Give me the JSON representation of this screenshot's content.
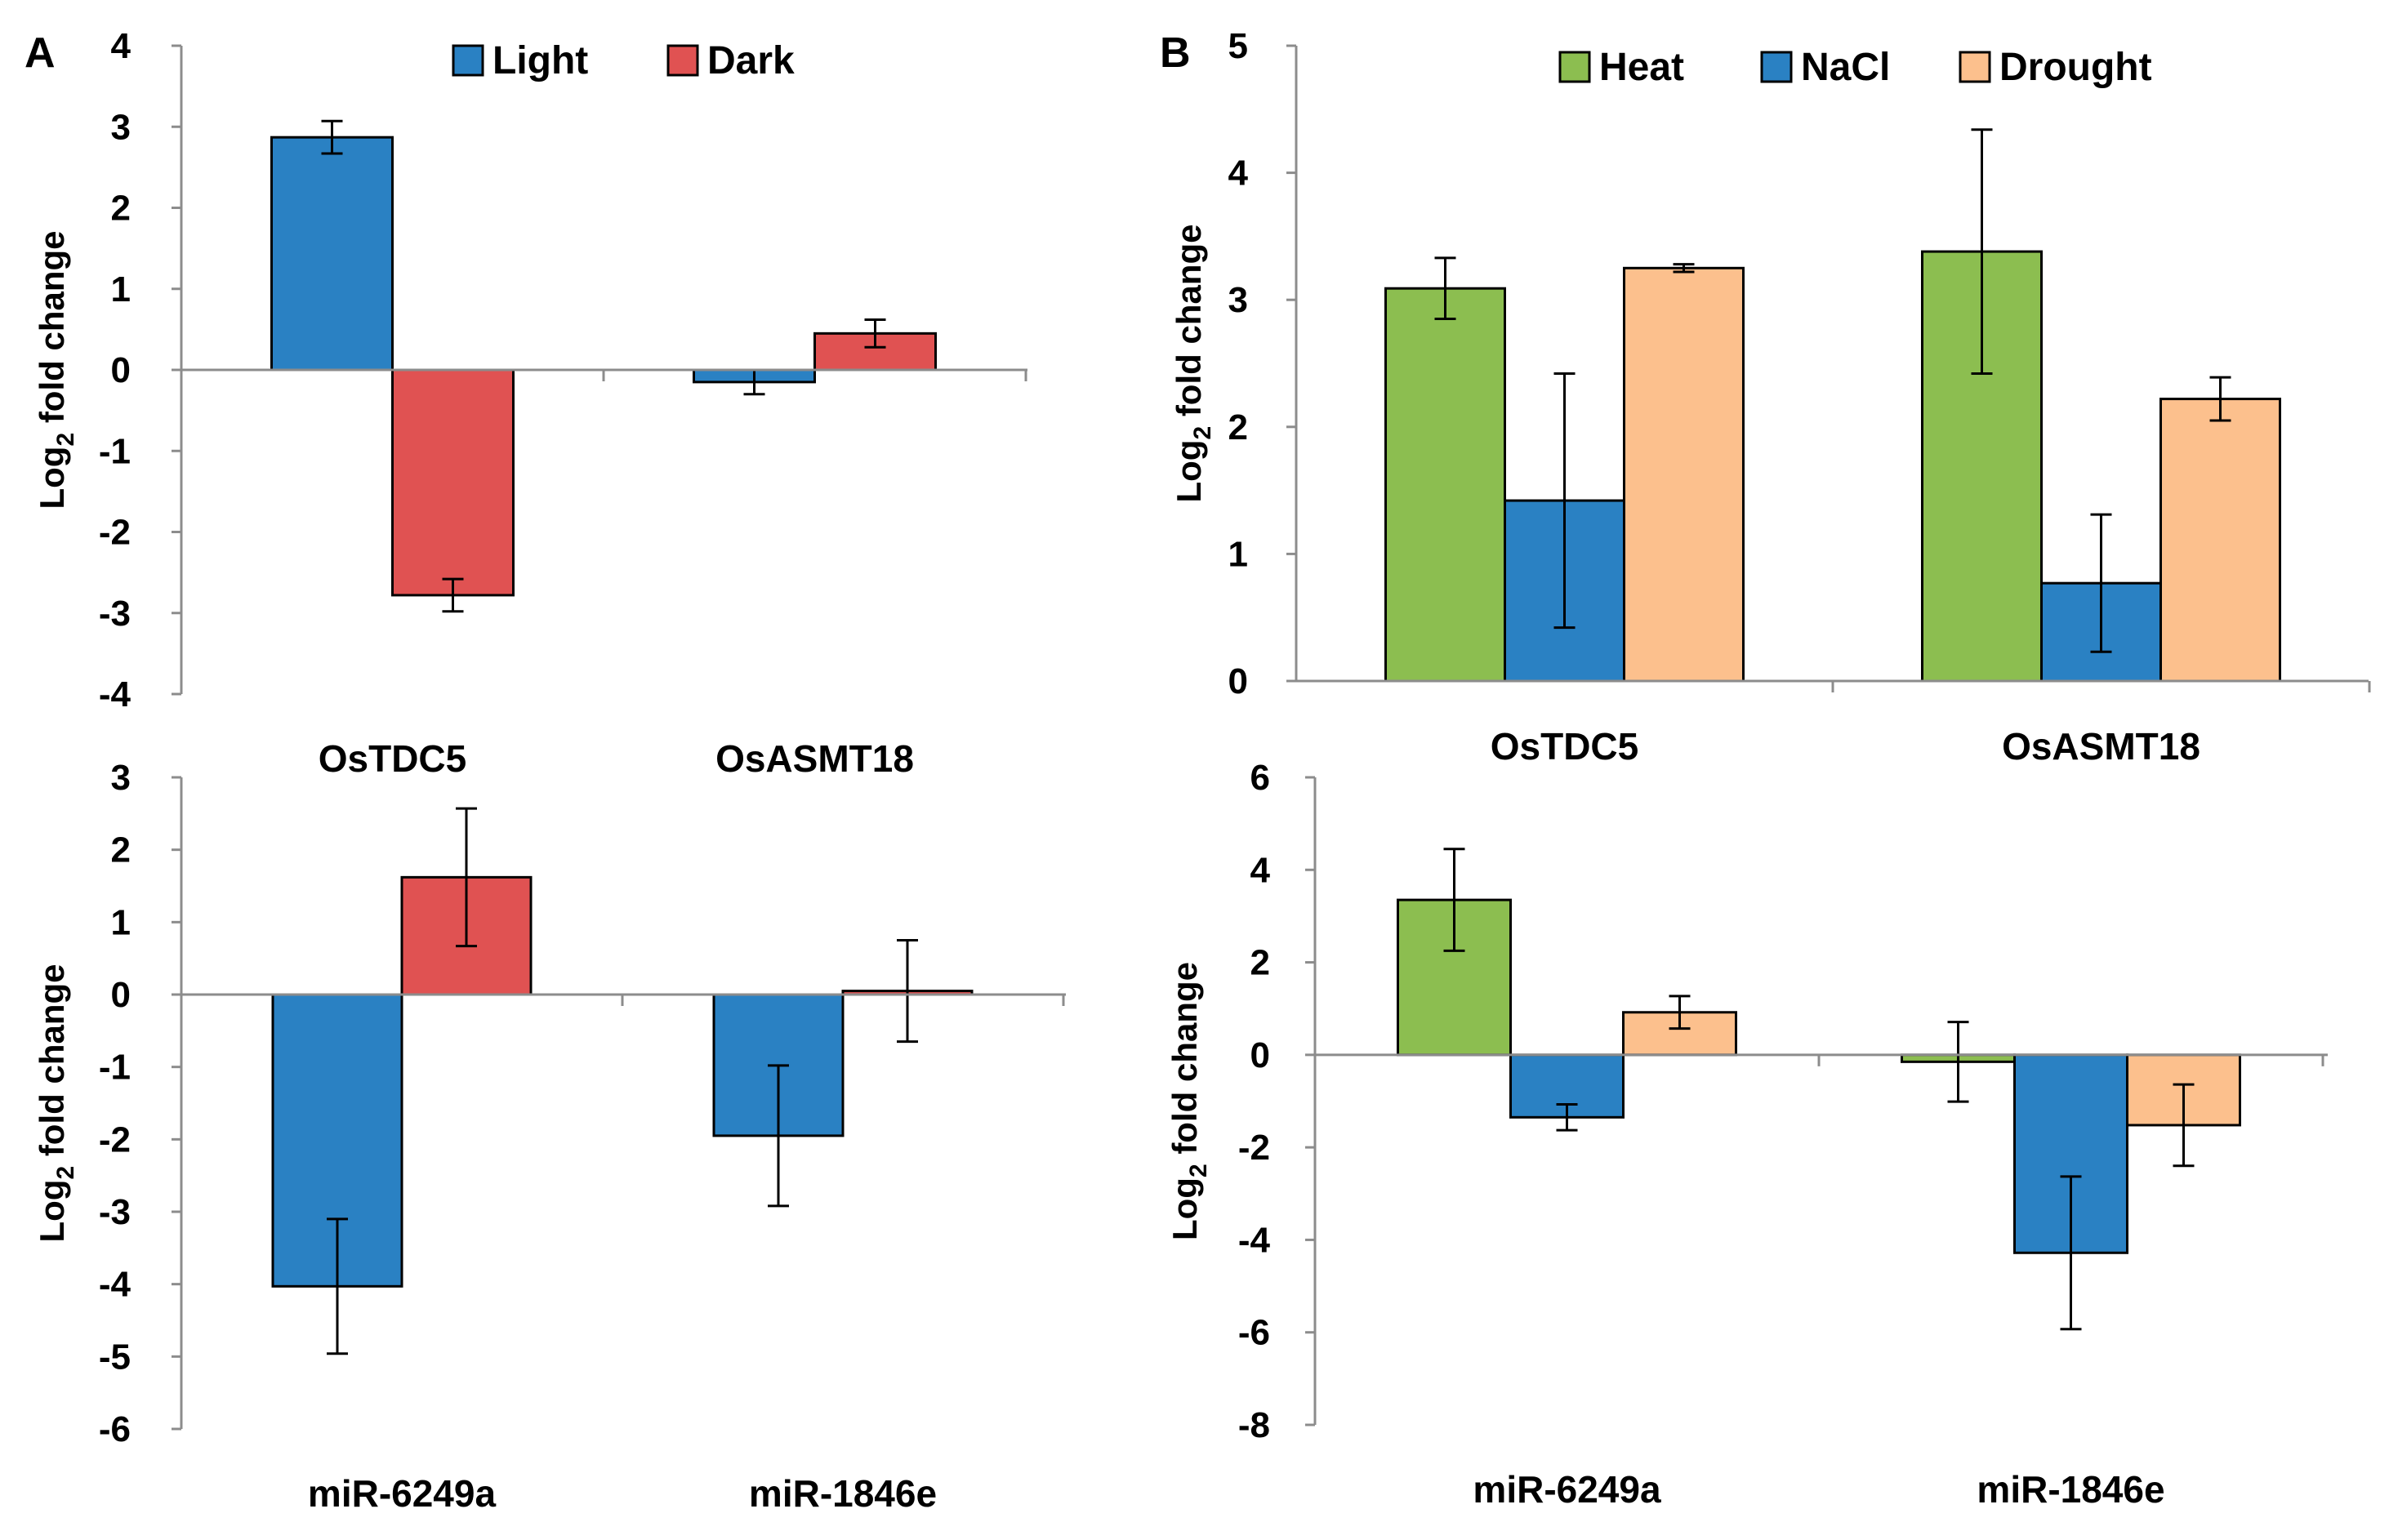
{
  "figure": {
    "panel_labels": [
      "A",
      "B"
    ],
    "ylabel_main": "Log",
    "ylabel_sub": "2",
    "ylabel_rest": " fold change"
  },
  "chart_data": [
    {
      "id": "A-top",
      "type": "bar",
      "panel": "A",
      "categories": [
        "OsTDC5",
        "OsASMT18"
      ],
      "series": [
        {
          "name": "Light",
          "color": "#2a81c3",
          "values": [
            2.87,
            -0.15
          ],
          "errors": [
            0.2,
            0.15
          ]
        },
        {
          "name": "Dark",
          "color": "#e05252",
          "values": [
            -2.78,
            0.45
          ],
          "errors": [
            0.2,
            0.17
          ]
        }
      ],
      "xlabel": "",
      "ylabel": "Log2 fold change",
      "ylim": [
        -4,
        4
      ],
      "yticks": [
        -4,
        -3,
        -2,
        -1,
        0,
        1,
        2,
        3,
        4
      ],
      "legend": "top-center"
    },
    {
      "id": "A-bottom",
      "type": "bar",
      "panel": "A",
      "categories": [
        "miR-6249a",
        "miR-1846e"
      ],
      "series": [
        {
          "name": "Light",
          "color": "#2a81c3",
          "values": [
            -4.03,
            -1.95
          ],
          "errors": [
            0.93,
            0.97
          ]
        },
        {
          "name": "Dark",
          "color": "#e05252",
          "values": [
            1.62,
            0.05
          ],
          "errors": [
            0.95,
            0.7
          ]
        }
      ],
      "xlabel": "",
      "ylabel": "Log2 fold change",
      "ylim": [
        -6,
        3
      ],
      "yticks": [
        -6,
        -5,
        -4,
        -3,
        -2,
        -1,
        0,
        1,
        2,
        3
      ],
      "legend": "none"
    },
    {
      "id": "B-top",
      "type": "bar",
      "panel": "B",
      "categories": [
        "OsTDC5",
        "OsASMT18"
      ],
      "series": [
        {
          "name": "Heat",
          "color": "#8cbe50",
          "values": [
            3.09,
            3.38
          ],
          "errors": [
            0.24,
            0.96
          ]
        },
        {
          "name": "NaCl",
          "color": "#2a81c3",
          "values": [
            1.42,
            0.77
          ],
          "errors": [
            1.0,
            0.54
          ]
        },
        {
          "name": "Drought",
          "color": "#fcc08d",
          "values": [
            3.25,
            2.22
          ],
          "errors": [
            0.03,
            0.17
          ]
        }
      ],
      "xlabel": "",
      "ylabel": "Log2 fold change",
      "ylim": [
        0,
        5
      ],
      "yticks": [
        0,
        1,
        2,
        3,
        4,
        5
      ],
      "legend": "top-center"
    },
    {
      "id": "B-bottom",
      "type": "bar",
      "panel": "B",
      "categories": [
        "miR-6249a",
        "miR-1846e"
      ],
      "series": [
        {
          "name": "Heat",
          "color": "#8cbe50",
          "values": [
            3.35,
            -0.15
          ],
          "errors": [
            1.1,
            0.86
          ]
        },
        {
          "name": "NaCl",
          "color": "#2a81c3",
          "values": [
            -1.35,
            -4.28
          ],
          "errors": [
            0.28,
            1.65
          ]
        },
        {
          "name": "Drought",
          "color": "#fcc08d",
          "values": [
            0.92,
            -1.52
          ],
          "errors": [
            0.35,
            0.88
          ]
        }
      ],
      "xlabel": "",
      "ylabel": "Log2 fold change",
      "ylim": [
        -8,
        6
      ],
      "yticks": [
        -8,
        -6,
        -4,
        -2,
        0,
        2,
        4,
        6
      ],
      "legend": "none"
    }
  ]
}
